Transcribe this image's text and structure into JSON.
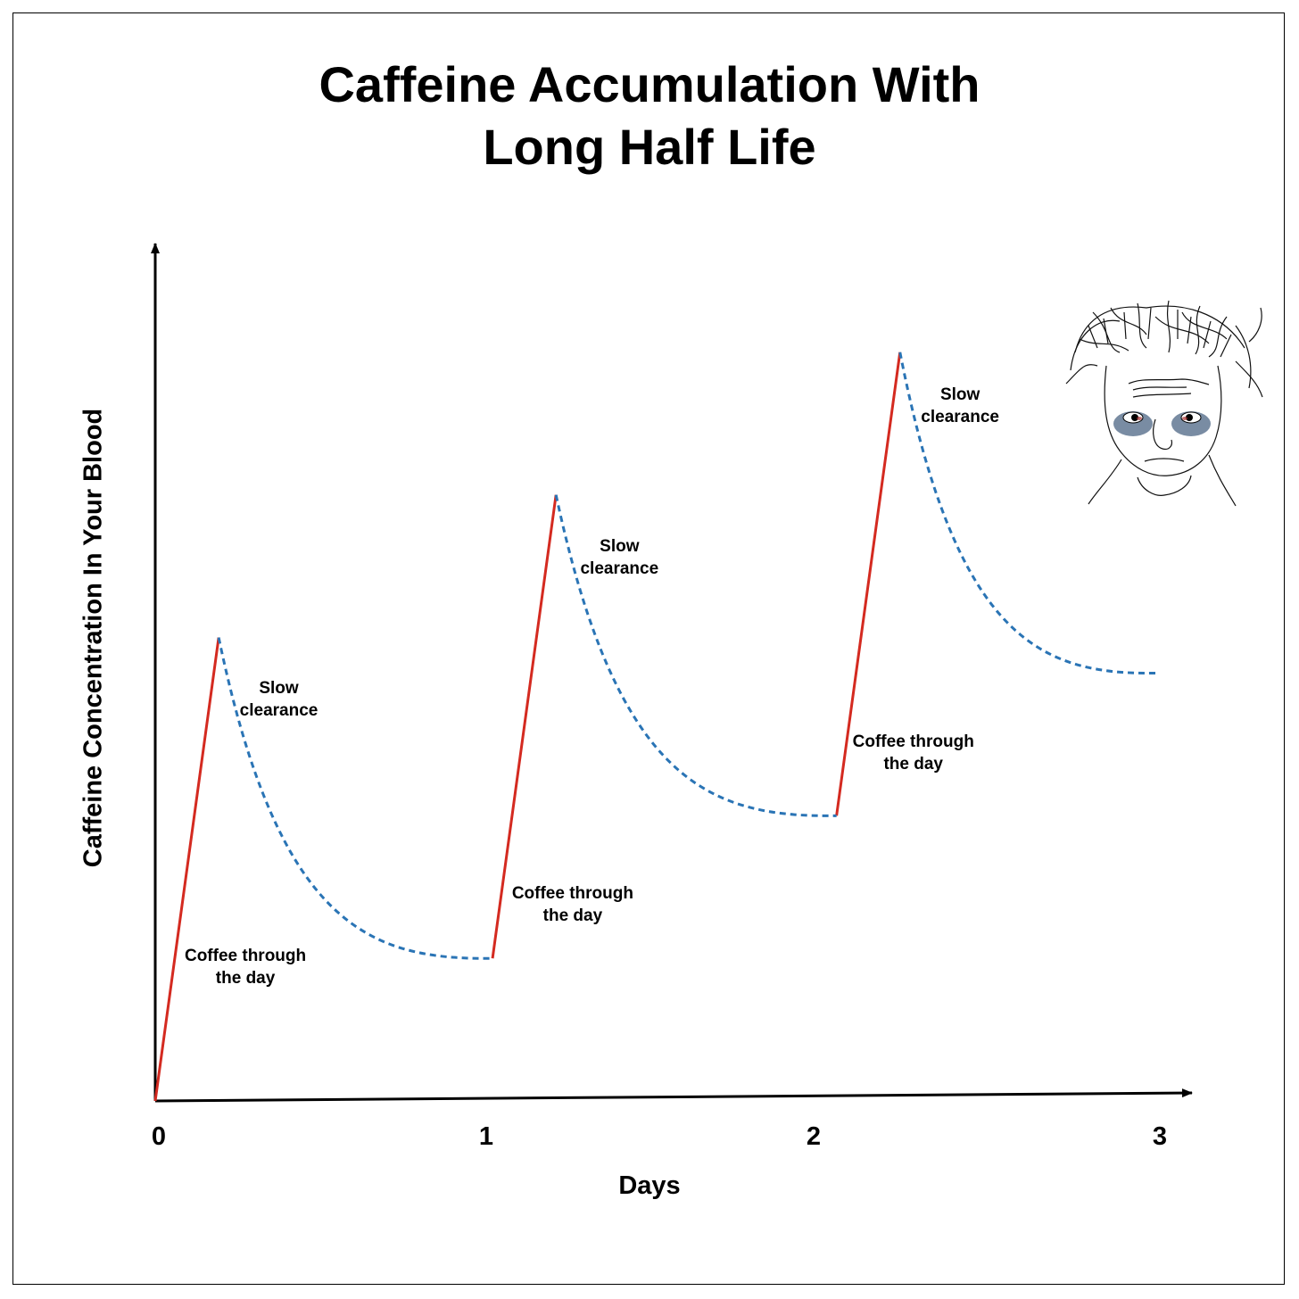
{
  "chart_data": {
    "type": "line",
    "title_lines": [
      "Caffeine Accumulation With",
      "Long Half Life"
    ],
    "xlabel": "Days",
    "ylabel": "Caffeine Concentration In Your Blood",
    "xticks": [
      "0",
      "1",
      "2",
      "3"
    ],
    "xlim": [
      0,
      3
    ],
    "ylim": [
      0,
      1
    ],
    "y_ticks_shown": false,
    "grid": false,
    "series": [
      {
        "style": "solid-red",
        "color": "#d42a20",
        "segments": [
          [
            [
              0,
              0
            ],
            [
              0.19,
              0.52
            ]
          ],
          [
            [
              1.01,
              0.16
            ],
            [
              1.2,
              0.68
            ]
          ],
          [
            [
              2.04,
              0.32
            ],
            [
              2.23,
              0.84
            ]
          ]
        ]
      },
      {
        "style": "dashed-blue",
        "color": "#2a74b5",
        "segments": [
          {
            "from": [
              0.19,
              0.52
            ],
            "to": [
              1.01,
              0.16
            ]
          },
          {
            "from": [
              1.2,
              0.68
            ],
            "to": [
              2.04,
              0.32
            ]
          },
          {
            "from": [
              2.23,
              0.84
            ],
            "to": [
              3.0,
              0.48
            ]
          }
        ]
      }
    ],
    "annotations": [
      {
        "lines": [
          "Coffee through",
          "the day"
        ],
        "x": 0.27,
        "y": 0.15
      },
      {
        "lines": [
          "Slow",
          "clearance"
        ],
        "x": 0.37,
        "y": 0.45
      },
      {
        "lines": [
          "Coffee through",
          "the day"
        ],
        "x": 1.25,
        "y": 0.22
      },
      {
        "lines": [
          "Slow",
          "clearance"
        ],
        "x": 1.39,
        "y": 0.61
      },
      {
        "lines": [
          "Coffee through",
          "the day"
        ],
        "x": 2.27,
        "y": 0.39
      },
      {
        "lines": [
          "Slow",
          "clearance"
        ],
        "x": 2.41,
        "y": 0.78
      }
    ]
  },
  "illustration": {
    "name": "tired-wojak-face"
  }
}
